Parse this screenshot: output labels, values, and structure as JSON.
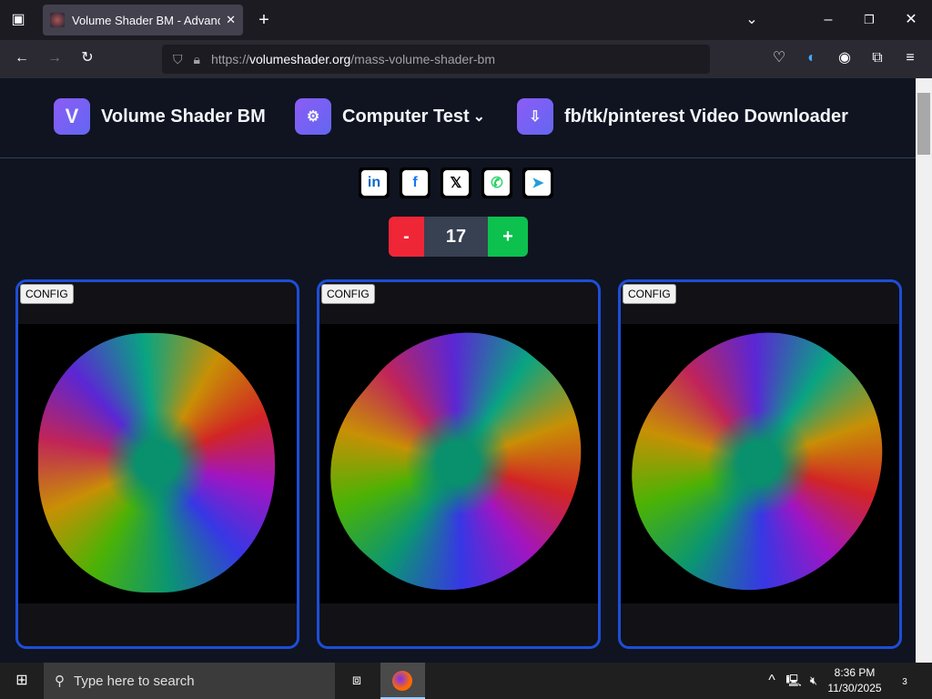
{
  "browser": {
    "tab_title": "Volume Shader BM - Advanced",
    "url_prefix": "https://",
    "url_domain": "volumeshader.org",
    "url_path": "/mass-volume-shader-bm"
  },
  "nav": {
    "items": [
      {
        "badge": "V",
        "label": "Volume Shader BM"
      },
      {
        "badge": "⚙",
        "label": "Computer Test",
        "chevron": "⌄"
      },
      {
        "badge": "⇩",
        "label": "fb/tk/pinterest Video Downloader"
      }
    ]
  },
  "social": [
    {
      "name": "linkedin",
      "glyph": "in",
      "color": "#0a66c2"
    },
    {
      "name": "facebook",
      "glyph": "f",
      "color": "#1877f2"
    },
    {
      "name": "x",
      "glyph": "𝕏",
      "color": "#000000"
    },
    {
      "name": "whatsapp",
      "glyph": "✆",
      "color": "#25d366"
    },
    {
      "name": "telegram",
      "glyph": "➤",
      "color": "#229ed9"
    }
  ],
  "counter": {
    "minus": "-",
    "value": "17",
    "plus": "+"
  },
  "cards": [
    {
      "config": "CONFIG"
    },
    {
      "config": "CONFIG"
    },
    {
      "config": "CONFIG"
    }
  ],
  "taskbar": {
    "search_placeholder": "Type here to search",
    "time": "8:36 PM",
    "date": "11/30/2025",
    "notifications": "3"
  }
}
